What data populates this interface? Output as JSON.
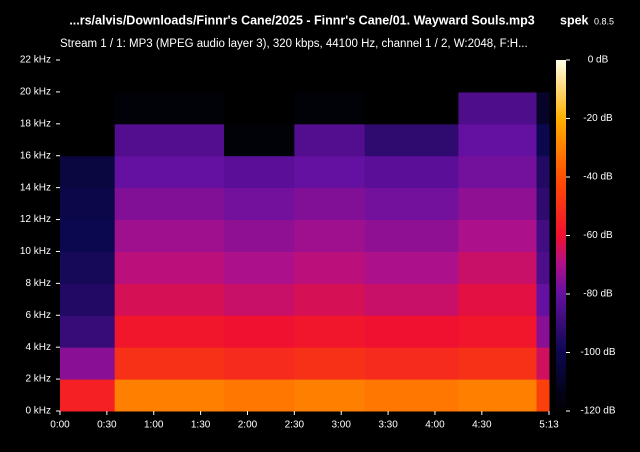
{
  "chart_data": {
    "type": "spectrogram",
    "title": "...rs/alvis/Downloads/Finnr's Cane/2025 - Finnr's Cane/01. Wayward Souls.mp3",
    "app_name": "spek",
    "app_version": "0.8.5",
    "subtitle": "Stream 1 / 1: MP3 (MPEG audio layer 3), 320 kbps, 44100 Hz, channel 1 / 2, W:2048, F:H...",
    "x_bins": [
      0,
      35,
      105,
      150,
      195,
      255,
      305,
      313
    ],
    "y_bins": [
      0,
      2,
      4,
      6,
      8,
      10,
      12,
      14,
      16,
      18,
      20,
      22
    ],
    "values": [
      [
        -55,
        -30,
        -32,
        -30,
        -32,
        -30,
        -45
      ],
      [
        -75,
        -50,
        -52,
        -50,
        -52,
        -50,
        -65
      ],
      [
        -90,
        -58,
        -60,
        -58,
        -60,
        -58,
        -75
      ],
      [
        -95,
        -64,
        -66,
        -64,
        -66,
        -62,
        -80
      ],
      [
        -98,
        -68,
        -70,
        -68,
        -70,
        -66,
        -85
      ],
      [
        -100,
        -72,
        -74,
        -72,
        -74,
        -70,
        -88
      ],
      [
        -102,
        -76,
        -78,
        -76,
        -78,
        -74,
        -92
      ],
      [
        -104,
        -80,
        -82,
        -80,
        -82,
        -78,
        -95
      ],
      [
        -120,
        -84,
        -118,
        -84,
        -92,
        -80,
        -100
      ],
      [
        -120,
        -118,
        -120,
        -118,
        -120,
        -85,
        -110
      ],
      [
        -120,
        -120,
        -120,
        -120,
        -120,
        -120,
        -120
      ]
    ],
    "xlim": [
      0,
      313
    ],
    "xticks": [
      {
        "value": 0,
        "label": "0:00"
      },
      {
        "value": 30,
        "label": "0:30"
      },
      {
        "value": 60,
        "label": "1:00"
      },
      {
        "value": 90,
        "label": "1:30"
      },
      {
        "value": 120,
        "label": "2:00"
      },
      {
        "value": 150,
        "label": "2:30"
      },
      {
        "value": 180,
        "label": "3:00"
      },
      {
        "value": 210,
        "label": "3:30"
      },
      {
        "value": 240,
        "label": "4:00"
      },
      {
        "value": 270,
        "label": "4:30"
      },
      {
        "value": 313,
        "label": "5:13"
      }
    ],
    "ylim": [
      0,
      22
    ],
    "yticks": [
      {
        "value": 0,
        "label": "0 kHz"
      },
      {
        "value": 2,
        "label": "2 kHz"
      },
      {
        "value": 4,
        "label": "4 kHz"
      },
      {
        "value": 6,
        "label": "6 kHz"
      },
      {
        "value": 8,
        "label": "8 kHz"
      },
      {
        "value": 10,
        "label": "10 kHz"
      },
      {
        "value": 12,
        "label": "12 kHz"
      },
      {
        "value": 14,
        "label": "14 kHz"
      },
      {
        "value": 16,
        "label": "16 kHz"
      },
      {
        "value": 18,
        "label": "18 kHz"
      },
      {
        "value": 20,
        "label": "20 kHz"
      },
      {
        "value": 22,
        "label": "22 kHz"
      }
    ],
    "clim": [
      -120,
      0
    ],
    "cticks": [
      {
        "value": 0,
        "label": "0 dB"
      },
      {
        "value": -20,
        "label": "-20 dB"
      },
      {
        "value": -40,
        "label": "-40 dB"
      },
      {
        "value": -60,
        "label": "-60 dB"
      },
      {
        "value": -80,
        "label": "-80 dB"
      },
      {
        "value": -100,
        "label": "-100 dB"
      },
      {
        "value": -120,
        "label": "-120 dB"
      }
    ]
  }
}
